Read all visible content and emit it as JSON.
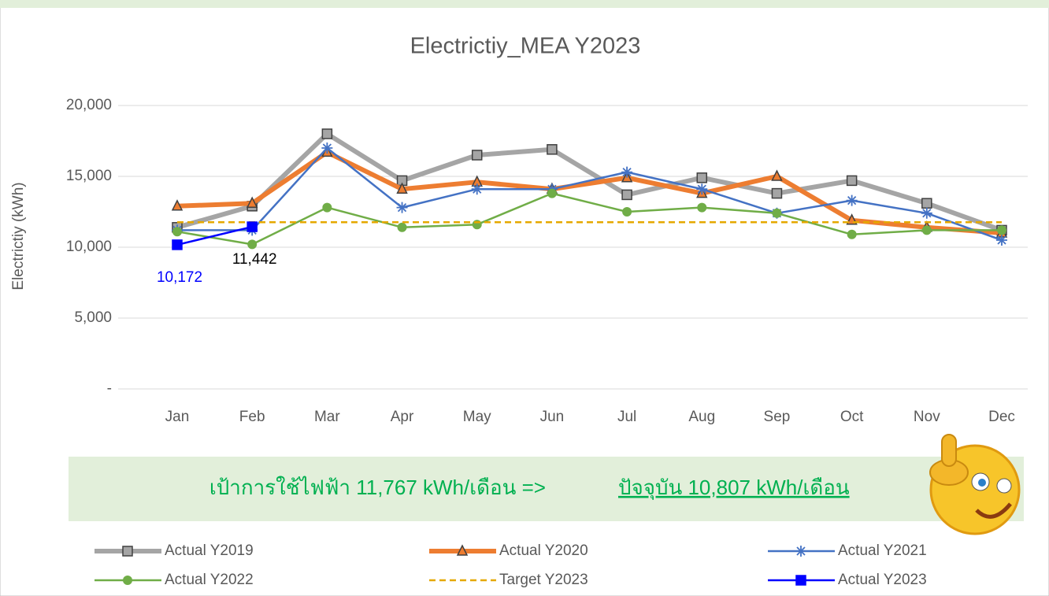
{
  "chart_data": {
    "type": "line",
    "title": "Electrictiy_MEA Y2023",
    "y_label": "Electrictiy (kWh)",
    "categories": [
      "Jan",
      "Feb",
      "Mar",
      "Apr",
      "May",
      "Jun",
      "Jul",
      "Aug",
      "Sep",
      "Oct",
      "Nov",
      "Dec"
    ],
    "ylim": [
      0,
      20000
    ],
    "yticks": [
      {
        "value": 0,
        "label": "-"
      },
      {
        "value": 5000,
        "label": "5,000"
      },
      {
        "value": 10000,
        "label": "10,000"
      },
      {
        "value": 15000,
        "label": "15,000"
      },
      {
        "value": 20000,
        "label": "20,000"
      }
    ],
    "grid": true,
    "series": [
      {
        "name": "Actual Y2019",
        "color": "#a5a5a5",
        "width": 6,
        "marker": "square",
        "values": [
          11400,
          12900,
          18000,
          14700,
          16500,
          16900,
          13700,
          14900,
          13800,
          14700,
          13100,
          11200
        ]
      },
      {
        "name": "Actual Y2020",
        "color": "#ed7d31",
        "width": 6,
        "marker": "triangle",
        "values": [
          12900,
          13100,
          16700,
          14100,
          14600,
          14100,
          14900,
          13800,
          15000,
          11900,
          11400,
          11000
        ]
      },
      {
        "name": "Actual Y2021",
        "color": "#4472c4",
        "width": 2.5,
        "marker": "star",
        "values": [
          11200,
          11200,
          17000,
          12800,
          14100,
          14100,
          15300,
          14100,
          12400,
          13300,
          12400,
          10500
        ]
      },
      {
        "name": "Actual Y2022",
        "color": "#70ad47",
        "width": 2.5,
        "marker": "circle",
        "values": [
          11100,
          10200,
          12800,
          11400,
          11600,
          13800,
          12500,
          12800,
          12400,
          10900,
          11200,
          11200
        ]
      },
      {
        "name": "Target Y2023",
        "color": "#e5a800",
        "width": 2.5,
        "dash": "8,5",
        "values": [
          11767,
          11767,
          11767,
          11767,
          11767,
          11767,
          11767,
          11767,
          11767,
          11767,
          11767,
          11767
        ]
      },
      {
        "name": "Actual Y2023",
        "color": "#0000ff",
        "width": 2.5,
        "marker": "square",
        "values": [
          10172,
          11442,
          null,
          null,
          null,
          null,
          null,
          null,
          null,
          null,
          null,
          null
        ],
        "value_labels": [
          "10,172",
          "11,442",
          null,
          null,
          null,
          null,
          null,
          null,
          null,
          null,
          null,
          null
        ],
        "value_label_colors": [
          "#0000ff",
          "#000000",
          null,
          null,
          null,
          null,
          null,
          null,
          null,
          null,
          null,
          null
        ]
      }
    ],
    "annotations": [
      "เป้าการใช้ไฟฟ้า 11,767 kWh/เดือน =>",
      "ปัจจุบัน 10,807 kWh/เดือน"
    ]
  }
}
